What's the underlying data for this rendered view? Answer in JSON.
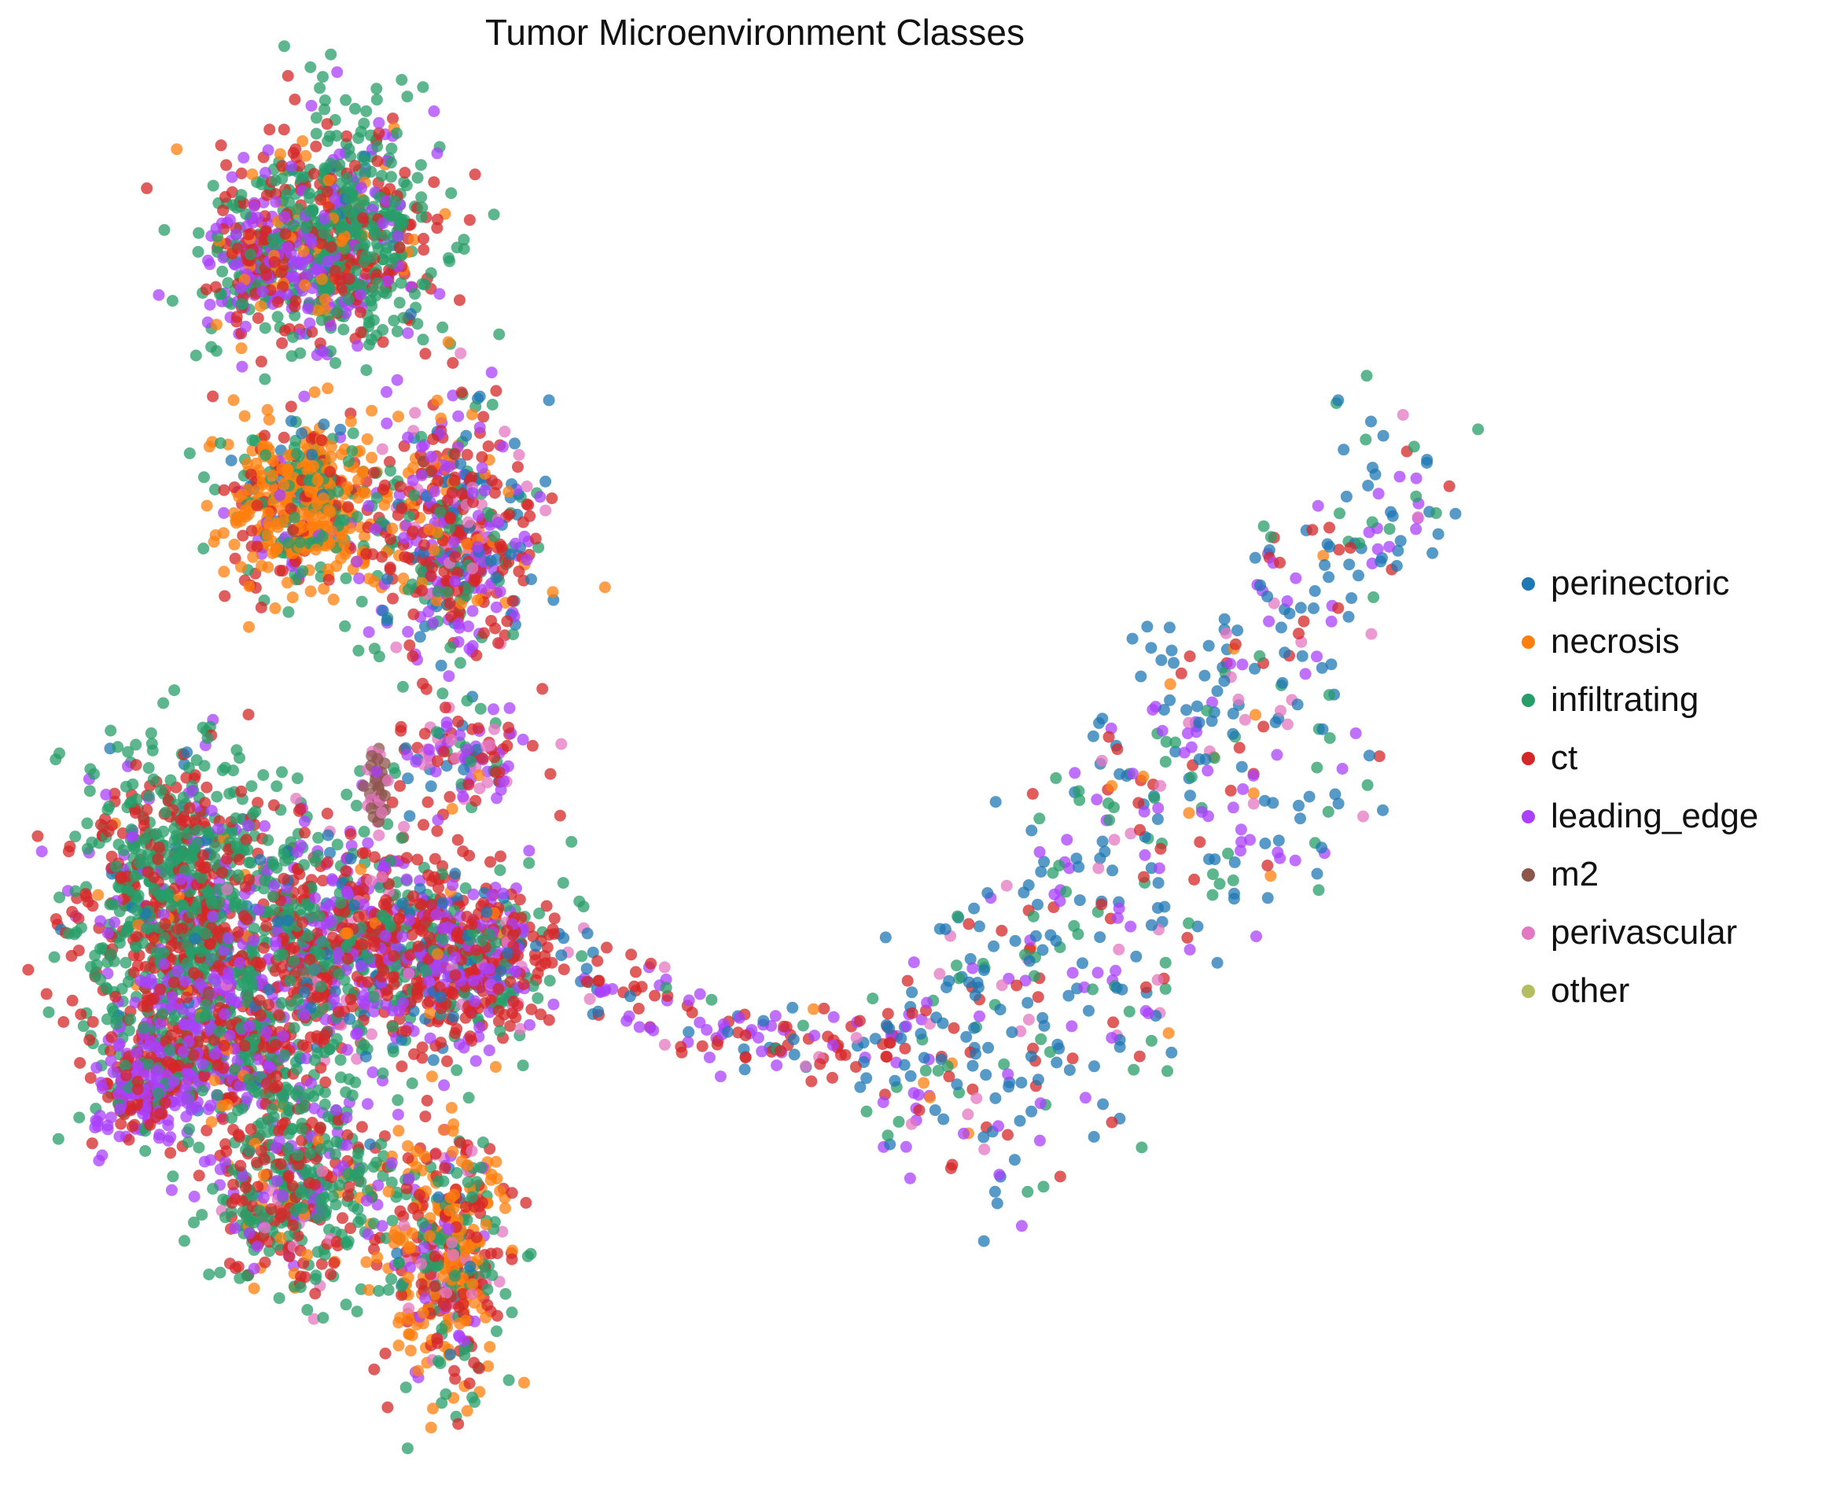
{
  "chart_data": {
    "type": "scatter",
    "title": "Tumor Microenvironment Classes",
    "xlabel": "",
    "ylabel": "",
    "axes_visible": false,
    "grid": false,
    "legend_position": "right",
    "point_alpha": 0.75,
    "series": [
      {
        "name": "perinectoric",
        "color": "#1f77b4"
      },
      {
        "name": "necrosis",
        "color": "#ff7f0e"
      },
      {
        "name": "infiltrating",
        "color": "#279e68"
      },
      {
        "name": "ct",
        "color": "#d62728"
      },
      {
        "name": "leading_edge",
        "color": "#aa40fc"
      },
      {
        "name": "m2",
        "color": "#8c564b"
      },
      {
        "name": "perivascular",
        "color": "#e377c2"
      },
      {
        "name": "other",
        "color": "#b5bd61"
      }
    ]
  }
}
